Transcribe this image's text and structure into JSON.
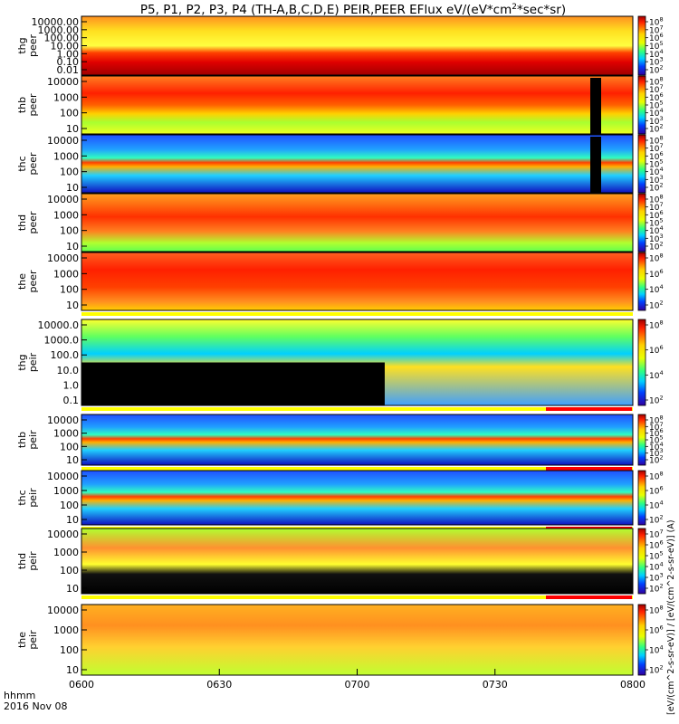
{
  "chart_data": {
    "type": "heatmap",
    "title": "P5, P1, P2, P3, P4 (TH-A,B,C,D,E) PEIR,PEER EFlux eV/(eV*cm^2*sec*sr)",
    "title_parts": {
      "main": "P5, P1, P2, P3, P4 (TH-A,B,C,D,E) PEIR,PEER EFlux eV/(eV*cm",
      "sup": "2",
      "end": "*sec*sr)"
    },
    "x_axis": {
      "ticks": [
        "0600",
        "0630",
        "0700",
        "0730",
        "0800"
      ],
      "range_hhmm": [
        "0600",
        "0800"
      ],
      "label_line1": "hhmm",
      "label_line2": "2016 Nov 08"
    },
    "colorbar_label": "[eV/(cm^2-s-sr-eV)] / [eV/(cm^2-s-sr-eV)] (A)",
    "panels": [
      {
        "probe": "thg",
        "species": "peer",
        "yticks": [
          "10000.00",
          "1000.00",
          "100.00",
          "10.00",
          "1.00",
          "0.10",
          "0.01"
        ],
        "ctick_exps": [
          "8",
          "7",
          "6",
          "5",
          "4",
          "3",
          "2"
        ],
        "quality_bar": false
      },
      {
        "probe": "thb",
        "species": "peer",
        "yticks": [
          "10000",
          "1000",
          "100",
          "10"
        ],
        "ctick_exps": [
          "8",
          "7",
          "6",
          "5",
          "4",
          "3",
          "2"
        ],
        "quality_bar": false
      },
      {
        "probe": "thc",
        "species": "peer",
        "yticks": [
          "10000",
          "1000",
          "100",
          "10"
        ],
        "ctick_exps": [
          "8",
          "7",
          "6",
          "5",
          "4",
          "3",
          "2"
        ],
        "quality_bar": false
      },
      {
        "probe": "thd",
        "species": "peer",
        "yticks": [
          "10000",
          "1000",
          "100",
          "10"
        ],
        "ctick_exps": [
          "8",
          "7",
          "6",
          "5",
          "4",
          "3",
          "2"
        ],
        "quality_bar": false
      },
      {
        "probe": "the",
        "species": "peer",
        "yticks": [
          "10000",
          "1000",
          "100",
          "10"
        ],
        "ctick_exps": [
          "8",
          "6",
          "4",
          "2"
        ],
        "quality_bar": true
      },
      {
        "probe": "thg",
        "species": "peir",
        "yticks": [
          "10000.0",
          "1000.0",
          "100.0",
          "10.0",
          "1.0",
          "0.1"
        ],
        "ctick_exps": [
          "8",
          "6",
          "4",
          "2"
        ],
        "quality_bar": true
      },
      {
        "probe": "thb",
        "species": "peir",
        "yticks": [
          "10000",
          "1000",
          "100",
          "10"
        ],
        "ctick_exps": [
          "8",
          "7",
          "6",
          "5",
          "4",
          "3",
          "2"
        ],
        "quality_bar": true
      },
      {
        "probe": "thc",
        "species": "peir",
        "yticks": [
          "10000",
          "1000",
          "100",
          "10"
        ],
        "ctick_exps": [
          "8",
          "6",
          "4",
          "2"
        ],
        "quality_bar": true
      },
      {
        "probe": "thd",
        "species": "peir",
        "yticks": [
          "10000",
          "1000",
          "100",
          "10"
        ],
        "ctick_exps": [
          "7",
          "6",
          "5",
          "4",
          "3",
          "2"
        ],
        "quality_bar": true
      },
      {
        "probe": "the",
        "species": "peir",
        "yticks": [
          "10000",
          "1000",
          "100",
          "10"
        ],
        "ctick_exps": [
          "8",
          "6",
          "4",
          "2"
        ],
        "quality_bar": false
      }
    ],
    "colorbar_base": "10"
  }
}
